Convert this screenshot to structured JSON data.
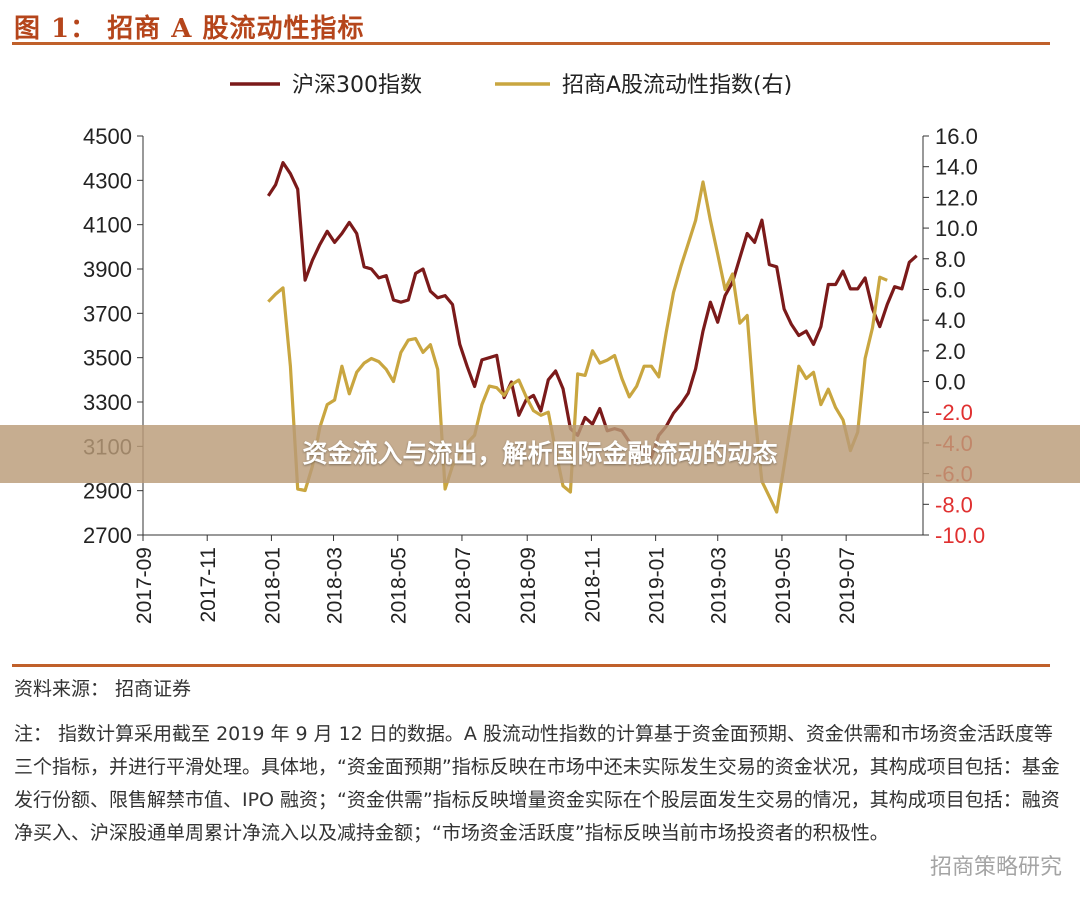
{
  "figure": {
    "title": "图 1：  招商 A 股流动性指标",
    "banner": "资金流入与流出，解析国际金融流动的动态",
    "source": "资料来源：  招商证券",
    "note": "注：  指数计算采用截至 2019 年 9 月 12 日的数据。A 股流动性指数的计算基于资金面预期、资金供需和市场资金活跃度等三个指标，并进行平滑处理。具体地，“资金面预期”指标反映在市场中还未实际发生交易的资金状况，其构成项目包括：基金发行份额、限售解禁市值、IPO 融资；“资金供需”指标反映增量资金实际在个股层面发生交易的情况，其构成项目包括：融资净买入、沪深股通单周累计净流入以及减持金额；“市场资金活跃度”指标反映当前市场投资者的积极性。",
    "watermark": "招商策略研究"
  },
  "chart_data": {
    "type": "line",
    "x_tick_labels": [
      "2017-09",
      "2017-11",
      "2018-01",
      "2018-03",
      "2018-05",
      "2018-07",
      "2018-09",
      "2018-11",
      "2019-01",
      "2019-03",
      "2019-05",
      "2019-07"
    ],
    "x_range": [
      "2017-09",
      "2019-09-12"
    ],
    "y_left": {
      "range": [
        2700,
        4500
      ],
      "ticks": [
        2700,
        2900,
        3100,
        3300,
        3500,
        3700,
        3900,
        4100,
        4300,
        4500
      ]
    },
    "y_right": {
      "range": [
        -10.0,
        16.0
      ],
      "ticks": [
        "-10.0",
        "-8.0",
        "-6.0",
        "-4.0",
        "-2.0",
        "0.0",
        "2.0",
        "4.0",
        "6.0",
        "8.0",
        "10.0",
        "12.0",
        "14.0",
        "16.0"
      ],
      "negative_color": "#e03030"
    },
    "legend_position": "top-center",
    "grid": false,
    "series": [
      {
        "name": "沪深300指数",
        "axis": "left",
        "color": "#7b1a1a",
        "points": [
          [
            "2017-12-29",
            4230
          ],
          [
            "2018-01-05",
            4280
          ],
          [
            "2018-01-12",
            4380
          ],
          [
            "2018-01-19",
            4330
          ],
          [
            "2018-01-26",
            4260
          ],
          [
            "2018-02-02",
            3850
          ],
          [
            "2018-02-09",
            3940
          ],
          [
            "2018-02-16",
            4010
          ],
          [
            "2018-02-23",
            4070
          ],
          [
            "2018-03-02",
            4020
          ],
          [
            "2018-03-09",
            4060
          ],
          [
            "2018-03-16",
            4110
          ],
          [
            "2018-03-23",
            4060
          ],
          [
            "2018-03-30",
            3910
          ],
          [
            "2018-04-06",
            3900
          ],
          [
            "2018-04-13",
            3860
          ],
          [
            "2018-04-20",
            3870
          ],
          [
            "2018-04-27",
            3760
          ],
          [
            "2018-05-04",
            3750
          ],
          [
            "2018-05-11",
            3760
          ],
          [
            "2018-05-18",
            3880
          ],
          [
            "2018-05-25",
            3900
          ],
          [
            "2018-06-01",
            3800
          ],
          [
            "2018-06-08",
            3770
          ],
          [
            "2018-06-15",
            3780
          ],
          [
            "2018-06-22",
            3740
          ],
          [
            "2018-06-29",
            3560
          ],
          [
            "2018-07-06",
            3460
          ],
          [
            "2018-07-13",
            3370
          ],
          [
            "2018-07-20",
            3490
          ],
          [
            "2018-07-27",
            3500
          ],
          [
            "2018-08-03",
            3510
          ],
          [
            "2018-08-10",
            3320
          ],
          [
            "2018-08-17",
            3390
          ],
          [
            "2018-08-24",
            3240
          ],
          [
            "2018-08-31",
            3310
          ],
          [
            "2018-09-07",
            3330
          ],
          [
            "2018-09-14",
            3260
          ],
          [
            "2018-09-21",
            3400
          ],
          [
            "2018-09-28",
            3440
          ],
          [
            "2018-10-05",
            3360
          ],
          [
            "2018-10-12",
            3180
          ],
          [
            "2018-10-19",
            3150
          ],
          [
            "2018-10-26",
            3230
          ],
          [
            "2018-11-02",
            3200
          ],
          [
            "2018-11-09",
            3270
          ],
          [
            "2018-11-16",
            3170
          ],
          [
            "2018-11-23",
            3180
          ],
          [
            "2018-11-30",
            3170
          ],
          [
            "2018-12-07",
            3120
          ],
          [
            "2018-12-14",
            3110
          ],
          [
            "2018-12-21",
            3080
          ],
          [
            "2018-12-28",
            3050
          ],
          [
            "2019-01-04",
            3150
          ],
          [
            "2019-01-11",
            3190
          ],
          [
            "2019-01-18",
            3250
          ],
          [
            "2019-01-25",
            3290
          ],
          [
            "2019-02-01",
            3340
          ],
          [
            "2019-02-08",
            3450
          ],
          [
            "2019-02-15",
            3620
          ],
          [
            "2019-02-22",
            3750
          ],
          [
            "2019-03-01",
            3660
          ],
          [
            "2019-03-08",
            3780
          ],
          [
            "2019-03-15",
            3840
          ],
          [
            "2019-03-22",
            3950
          ],
          [
            "2019-03-29",
            4060
          ],
          [
            "2019-04-05",
            4020
          ],
          [
            "2019-04-12",
            4120
          ],
          [
            "2019-04-19",
            3920
          ],
          [
            "2019-04-26",
            3910
          ],
          [
            "2019-05-03",
            3720
          ],
          [
            "2019-05-10",
            3650
          ],
          [
            "2019-05-17",
            3600
          ],
          [
            "2019-05-24",
            3620
          ],
          [
            "2019-05-31",
            3560
          ],
          [
            "2019-06-07",
            3640
          ],
          [
            "2019-06-14",
            3830
          ],
          [
            "2019-06-21",
            3830
          ],
          [
            "2019-06-28",
            3890
          ],
          [
            "2019-07-05",
            3810
          ],
          [
            "2019-07-12",
            3810
          ],
          [
            "2019-07-19",
            3860
          ],
          [
            "2019-07-26",
            3720
          ],
          [
            "2019-08-02",
            3640
          ],
          [
            "2019-08-09",
            3740
          ],
          [
            "2019-08-16",
            3820
          ],
          [
            "2019-08-23",
            3810
          ],
          [
            "2019-08-30",
            3930
          ],
          [
            "2019-09-06",
            3960
          ]
        ]
      },
      {
        "name": "招商A股流动性指数(右)",
        "axis": "right",
        "color": "#c9a640",
        "points": [
          [
            "2017-12-29",
            5.2
          ],
          [
            "2018-01-05",
            5.7
          ],
          [
            "2018-01-12",
            6.1
          ],
          [
            "2018-01-19",
            1.0
          ],
          [
            "2018-01-26",
            -7.0
          ],
          [
            "2018-02-02",
            -7.1
          ],
          [
            "2018-02-09",
            -5.5
          ],
          [
            "2018-02-16",
            -3.0
          ],
          [
            "2018-02-23",
            -1.5
          ],
          [
            "2018-03-02",
            -1.2
          ],
          [
            "2018-03-09",
            1.0
          ],
          [
            "2018-03-16",
            -0.8
          ],
          [
            "2018-03-23",
            0.6
          ],
          [
            "2018-03-30",
            1.2
          ],
          [
            "2018-04-06",
            1.5
          ],
          [
            "2018-04-13",
            1.3
          ],
          [
            "2018-04-20",
            0.8
          ],
          [
            "2018-04-27",
            0.0
          ],
          [
            "2018-05-04",
            1.9
          ],
          [
            "2018-05-11",
            2.7
          ],
          [
            "2018-05-18",
            2.8
          ],
          [
            "2018-05-25",
            1.9
          ],
          [
            "2018-06-01",
            2.4
          ],
          [
            "2018-06-08",
            0.8
          ],
          [
            "2018-06-15",
            -7.0
          ],
          [
            "2018-06-22",
            -5.5
          ],
          [
            "2018-06-29",
            -4.8
          ],
          [
            "2018-07-06",
            -4.0
          ],
          [
            "2018-07-13",
            -3.5
          ],
          [
            "2018-07-20",
            -1.5
          ],
          [
            "2018-07-27",
            -0.3
          ],
          [
            "2018-08-03",
            -0.4
          ],
          [
            "2018-08-10",
            -0.9
          ],
          [
            "2018-08-17",
            -0.2
          ],
          [
            "2018-08-24",
            0.1
          ],
          [
            "2018-08-31",
            -1.0
          ],
          [
            "2018-09-07",
            -1.9
          ],
          [
            "2018-09-14",
            -2.2
          ],
          [
            "2018-09-21",
            -2.0
          ],
          [
            "2018-09-28",
            -4.5
          ],
          [
            "2018-10-05",
            -6.8
          ],
          [
            "2018-10-12",
            -7.2
          ],
          [
            "2018-10-19",
            0.5
          ],
          [
            "2018-10-26",
            0.4
          ],
          [
            "2018-11-02",
            2.0
          ],
          [
            "2018-11-09",
            1.2
          ],
          [
            "2018-11-16",
            1.4
          ],
          [
            "2018-11-23",
            1.7
          ],
          [
            "2018-11-30",
            0.2
          ],
          [
            "2018-12-07",
            -1.0
          ],
          [
            "2018-12-14",
            -0.3
          ],
          [
            "2018-12-21",
            1.0
          ],
          [
            "2018-12-28",
            1.0
          ],
          [
            "2019-01-04",
            0.3
          ],
          [
            "2019-01-11",
            3.2
          ],
          [
            "2019-01-18",
            5.8
          ],
          [
            "2019-01-25",
            7.5
          ],
          [
            "2019-02-01",
            9.0
          ],
          [
            "2019-02-08",
            10.5
          ],
          [
            "2019-02-15",
            13.0
          ],
          [
            "2019-02-22",
            10.5
          ],
          [
            "2019-03-01",
            8.3
          ],
          [
            "2019-03-08",
            6.0
          ],
          [
            "2019-03-15",
            7.0
          ],
          [
            "2019-03-22",
            3.8
          ],
          [
            "2019-03-29",
            4.3
          ],
          [
            "2019-04-05",
            -2.0
          ],
          [
            "2019-04-12",
            -6.5
          ],
          [
            "2019-04-19",
            -7.5
          ],
          [
            "2019-04-26",
            -8.5
          ],
          [
            "2019-05-03",
            -5.5
          ],
          [
            "2019-05-10",
            -2.5
          ],
          [
            "2019-05-17",
            1.0
          ],
          [
            "2019-05-24",
            0.2
          ],
          [
            "2019-05-31",
            0.6
          ],
          [
            "2019-06-07",
            -1.5
          ],
          [
            "2019-06-14",
            -0.5
          ],
          [
            "2019-06-21",
            -1.7
          ],
          [
            "2019-06-28",
            -2.5
          ],
          [
            "2019-07-05",
            -4.5
          ],
          [
            "2019-07-12",
            -3.3
          ],
          [
            "2019-07-19",
            1.5
          ],
          [
            "2019-07-26",
            3.5
          ],
          [
            "2019-08-02",
            6.8
          ],
          [
            "2019-08-09",
            6.6
          ]
        ]
      }
    ]
  }
}
